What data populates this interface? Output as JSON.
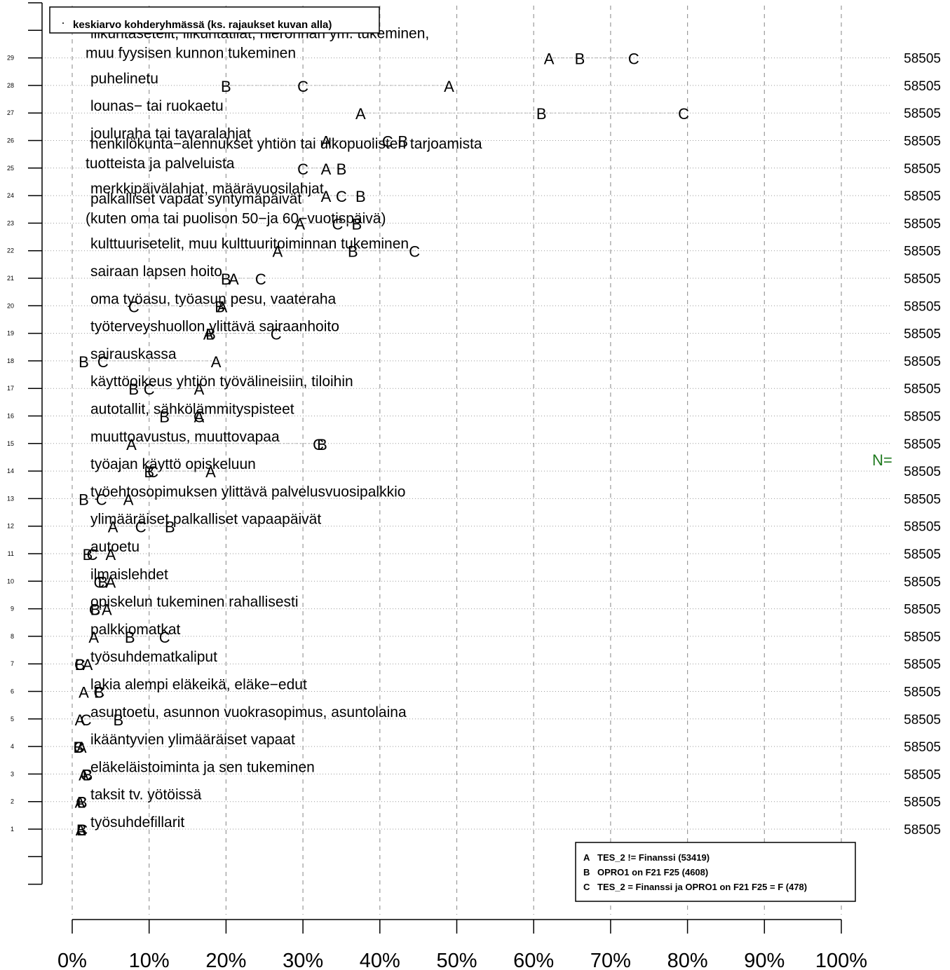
{
  "chart_data": {
    "type": "scatter",
    "title": "",
    "xlabel": "",
    "ylabel": "",
    "xlim": [
      0,
      100
    ],
    "x_unit": "%",
    "grid": true,
    "x_ticks": [
      0,
      10,
      20,
      30,
      40,
      50,
      60,
      70,
      80,
      90,
      100
    ],
    "x_tick_labels": [
      "0%",
      "10%",
      "20%",
      "30%",
      "40%",
      "50%",
      "60%",
      "70%",
      "80%",
      "90%",
      "100%"
    ],
    "point_legend_text": "keskiarvo kohderyhmässä (ks. rajaukset kuvan alla)",
    "n_label": "N=",
    "legend": {
      "placement": "bottom-right",
      "entries": [
        {
          "key": "A",
          "text": "TES_2 != Finanssi (53419)"
        },
        {
          "key": "B",
          "text": "OPRO1 on F21 F25 (4608)"
        },
        {
          "key": "C",
          "text": "TES_2 = Finanssi ja OPRO1 on F21 F25 = F (478)"
        }
      ]
    },
    "series": [
      {
        "name": "A",
        "values": [
          1.1,
          1.0,
          1.5,
          1.2,
          1.0,
          1.5,
          2.0,
          2.8,
          4.5,
          5.0,
          5.0,
          5.3,
          7.3,
          18.0,
          7.7,
          16.5,
          16.5,
          18.7,
          17.7,
          19.5,
          21.0,
          26.7,
          29.6,
          33.0,
          33.0,
          33.0,
          37.5,
          49.0,
          62.0
        ]
      },
      {
        "name": "B",
        "values": [
          1.2,
          1.3,
          2.0,
          0.8,
          6.0,
          3.5,
          1.0,
          7.5,
          3.0,
          4.0,
          2.0,
          12.7,
          1.5,
          10.0,
          32.5,
          12.0,
          8.0,
          1.5,
          18.0,
          19.2,
          20.0,
          36.5,
          37.0,
          37.5,
          35.0,
          43.0,
          61.0,
          20.0,
          66.0
        ]
      },
      {
        "name": "C",
        "values": [
          1.3,
          1.2,
          1.8,
          0.9,
          1.8,
          3.5,
          1.0,
          12.0,
          2.9,
          3.5,
          2.6,
          8.9,
          3.8,
          10.5,
          32.0,
          16.5,
          10.0,
          4.0,
          26.5,
          8.0,
          24.5,
          44.5,
          34.5,
          35.0,
          30.0,
          41.0,
          79.5,
          30.0,
          73.0
        ]
      }
    ],
    "rows": [
      {
        "y": 1,
        "label": [
          "työsuhdefillarit"
        ],
        "n": "58505"
      },
      {
        "y": 2,
        "label": [
          "taksit tv. yötöissä"
        ],
        "n": "58505"
      },
      {
        "y": 3,
        "label": [
          "eläkeläistoiminta ja sen tukeminen"
        ],
        "n": "58505"
      },
      {
        "y": 4,
        "label": [
          "ikääntyvien ylimääräiset vapaat"
        ],
        "n": "58505"
      },
      {
        "y": 5,
        "label": [
          "asuntoetu, asunnon vuokrasopimus, asuntolaina"
        ],
        "n": "58505"
      },
      {
        "y": 6,
        "label": [
          "lakia alempi eläkeikä, eläke−edut"
        ],
        "n": "58505"
      },
      {
        "y": 7,
        "label": [
          "työsuhdematkaliput"
        ],
        "n": "58505"
      },
      {
        "y": 8,
        "label": [
          "palkkiomatkat"
        ],
        "n": "58505"
      },
      {
        "y": 9,
        "label": [
          "opiskelun tukeminen rahallisesti"
        ],
        "n": "58505"
      },
      {
        "y": 10,
        "label": [
          "ilmaislehdet"
        ],
        "n": "58505"
      },
      {
        "y": 11,
        "label": [
          "autoetu"
        ],
        "n": "58505"
      },
      {
        "y": 12,
        "label": [
          "ylimääräiset palkalliset vapaapäivät"
        ],
        "n": "58505"
      },
      {
        "y": 13,
        "label": [
          "työehtosopimuksen ylittävä palvelusvuosipalkkio"
        ],
        "n": "58505"
      },
      {
        "y": 14,
        "label": [
          "työajan käyttö opiskeluun"
        ],
        "n": "58505"
      },
      {
        "y": 15,
        "label": [
          "muuttoavustus, muuttovapaa"
        ],
        "n": "58505"
      },
      {
        "y": 16,
        "label": [
          "autotallit, sähkölämmityspisteet"
        ],
        "n": "58505"
      },
      {
        "y": 17,
        "label": [
          "käyttöoikeus yhtiön työvälineisiin, tiloihin"
        ],
        "n": "58505"
      },
      {
        "y": 18,
        "label": [
          "sairauskassa"
        ],
        "n": "58505"
      },
      {
        "y": 19,
        "label": [
          "työterveyshuollon ylittävä sairaanhoito"
        ],
        "n": "58505"
      },
      {
        "y": 20,
        "label": [
          "oma työasu, työasun pesu, vaateraha"
        ],
        "n": "58505"
      },
      {
        "y": 21,
        "label": [
          "sairaan lapsen hoito"
        ],
        "n": "58505"
      },
      {
        "y": 22,
        "label": [
          "kulttuurisetelit, muu kulttuuritoiminnan tukeminen"
        ],
        "n": "58505"
      },
      {
        "y": 23,
        "label": [
          "palkalliset vapaat syntymäpäivät",
          "(kuten oma tai puolison 50−ja 60−vuotispäivä)"
        ],
        "n": "58505"
      },
      {
        "y": 24,
        "label": [
          "merkkipäivälahjat, määrävuosilahjat"
        ],
        "n": "58505"
      },
      {
        "y": 25,
        "label": [
          "henkilökunta−alennukset yhtiön tai ulkopuolisten tarjoamista",
          "tuotteista ja palveluista"
        ],
        "n": "58505"
      },
      {
        "y": 26,
        "label": [
          "jouluraha tai tavaralahjat"
        ],
        "n": "58505"
      },
      {
        "y": 27,
        "label": [
          "lounas− tai ruokaetu"
        ],
        "n": "58505"
      },
      {
        "y": 28,
        "label": [
          "puhelinetu"
        ],
        "n": "58505"
      },
      {
        "y": 29,
        "label": [
          "liikuntasetelit, liikuntatilat, hieronnan ym. tukeminen,",
          "muu fyysisen kunnon tukeminen"
        ],
        "n": "58505"
      }
    ]
  }
}
